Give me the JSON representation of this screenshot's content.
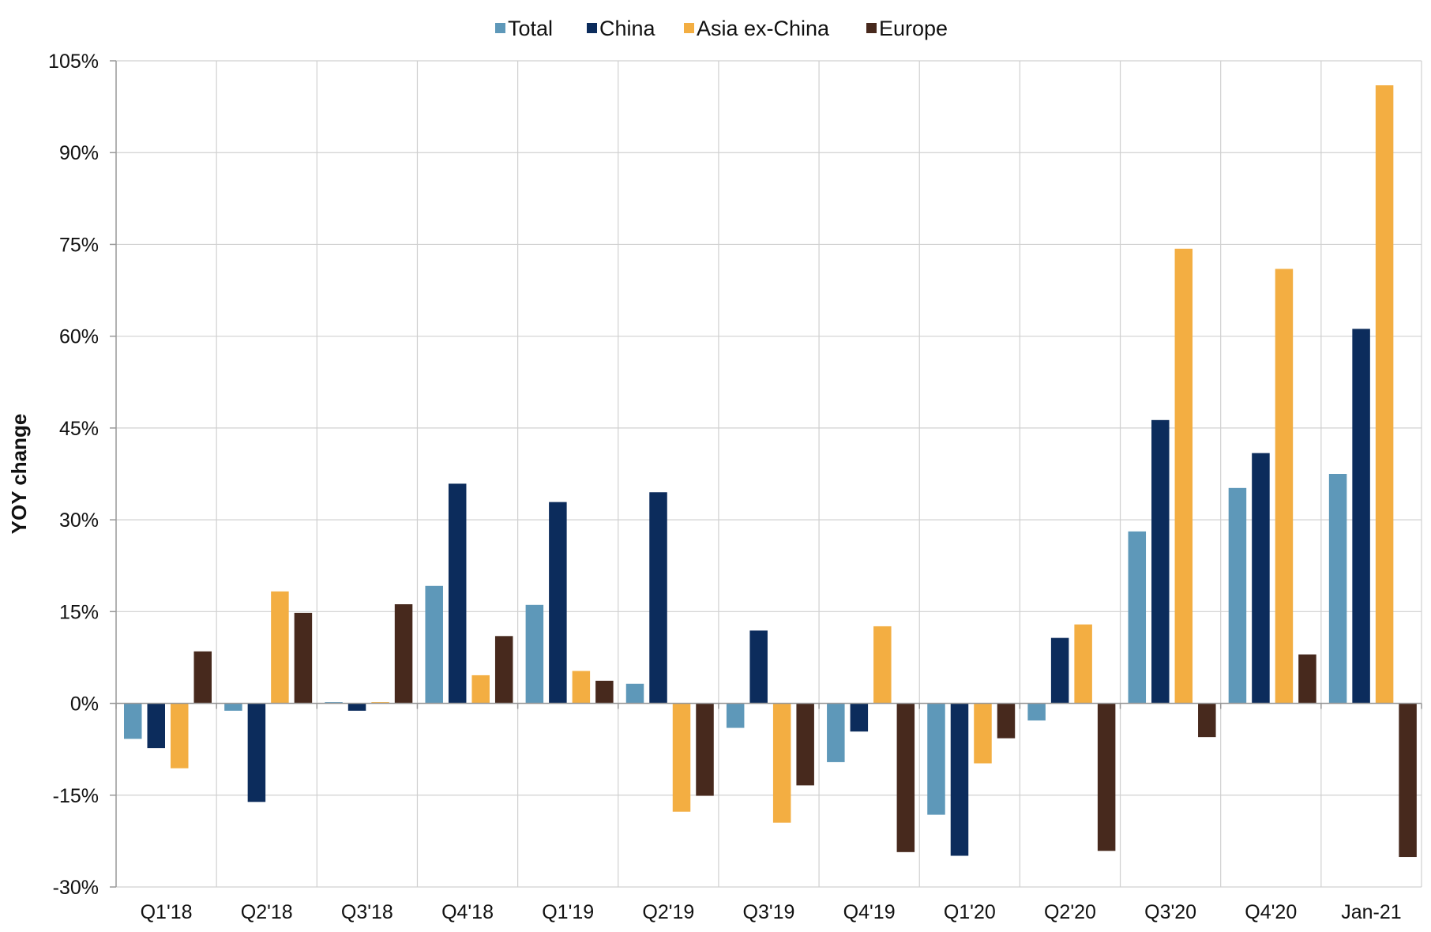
{
  "chart_data": {
    "type": "bar",
    "title": "",
    "xlabel": "",
    "ylabel": "YOY change",
    "ylim": [
      -30,
      105
    ],
    "yticks": [
      -30,
      -15,
      0,
      15,
      30,
      45,
      60,
      75,
      90,
      105
    ],
    "ytick_labels": [
      "-30%",
      "-15%",
      "0%",
      "15%",
      "30%",
      "45%",
      "60%",
      "75%",
      "90%",
      "105%"
    ],
    "grid": true,
    "legend_position": "top",
    "categories": [
      "Q1'18",
      "Q2'18",
      "Q3'18",
      "Q4'18",
      "Q1'19",
      "Q2'19",
      "Q3'19",
      "Q4'19",
      "Q1'20",
      "Q2'20",
      "Q3'20",
      "Q4'20",
      "Jan-21"
    ],
    "series": [
      {
        "name": "Total",
        "color": "#5e98b9",
        "values": [
          -5.8,
          -1.2,
          0.2,
          19.2,
          16.1,
          3.2,
          -4.0,
          -9.6,
          -18.2,
          -2.8,
          28.1,
          35.2,
          37.5
        ]
      },
      {
        "name": "China",
        "color": "#0c2c5c",
        "values": [
          -7.3,
          -16.1,
          -1.2,
          35.9,
          32.9,
          34.5,
          11.9,
          -4.6,
          -24.9,
          10.7,
          46.3,
          40.9,
          61.2
        ]
      },
      {
        "name": "Asia ex-China",
        "color": "#f3ae42",
        "values": [
          -10.6,
          18.3,
          0.2,
          4.6,
          5.3,
          -17.7,
          -19.5,
          12.6,
          -9.8,
          12.9,
          74.3,
          71.0,
          101.0
        ]
      },
      {
        "name": "Europe",
        "color": "#47291d",
        "values": [
          8.5,
          14.8,
          16.2,
          11.0,
          3.7,
          -15.1,
          -13.4,
          -24.3,
          -5.7,
          -24.1,
          -5.5,
          8.0,
          -25.1
        ]
      }
    ]
  }
}
